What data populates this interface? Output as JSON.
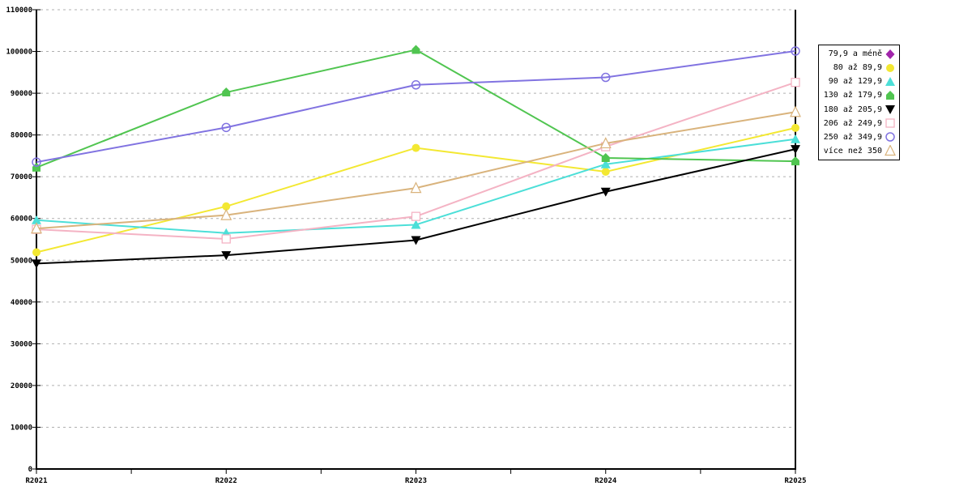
{
  "chart_data": {
    "type": "line",
    "title": "",
    "xlabel": "",
    "ylabel": "",
    "x_categories": [
      "R2021",
      "R2022",
      "R2023",
      "R2024",
      "R2025"
    ],
    "y_axis": {
      "min": 0,
      "max": 110000,
      "tick_step": 10000,
      "tick_labels": [
        "0",
        "10000",
        "20000",
        "30000",
        "40000",
        "50000",
        "60000",
        "70000",
        "80000",
        "90000",
        "100000",
        "110000"
      ]
    },
    "grid": "horizontal-dashed",
    "legend_position": "right",
    "series": [
      {
        "name": "79,9 a méně",
        "color": "#a125ab",
        "marker": "diamond-filled",
        "values": []
      },
      {
        "name": "80 až 89,9",
        "color": "#f3e832",
        "marker": "circle-filled",
        "values": [
          51900,
          62900,
          76900,
          71200,
          81700
        ]
      },
      {
        "name": "90 až 129,9",
        "color": "#4cdfd8",
        "marker": "triangle-up-filled",
        "values": [
          59600,
          56500,
          58500,
          73000,
          79000
        ]
      },
      {
        "name": "130 až 179,9",
        "color": "#50c550",
        "marker": "pentagon-filled",
        "values": [
          72200,
          90200,
          100400,
          74500,
          73700
        ]
      },
      {
        "name": "180 až 205,9",
        "color": "#000000",
        "marker": "triangle-down-filled",
        "values": [
          49200,
          51200,
          54800,
          66400,
          76600
        ]
      },
      {
        "name": "206 až 249,9",
        "color": "#f4b3c4",
        "marker": "square-open",
        "values": [
          57400,
          55100,
          60500,
          77200,
          92600
        ]
      },
      {
        "name": "250 až 349,9",
        "color": "#8173e1",
        "marker": "circle-open",
        "values": [
          73500,
          81800,
          92000,
          93800,
          100100
        ]
      },
      {
        "name": "více než 350",
        "color": "#d9b37c",
        "marker": "triangle-up-open",
        "values": [
          57600,
          60800,
          67300,
          78000,
          85500
        ]
      }
    ]
  },
  "colors": {
    "grid": "#b0b0b0",
    "axis": "#000000",
    "background": "#ffffff"
  }
}
